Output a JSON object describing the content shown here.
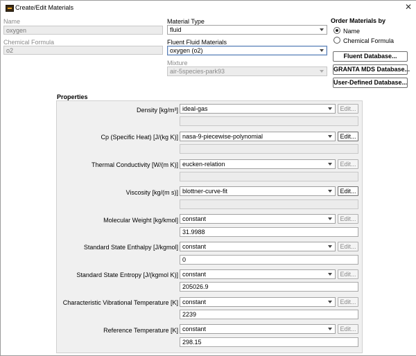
{
  "window": {
    "title": "Create/Edit Materials",
    "close_glyph": "✕"
  },
  "name": {
    "label": "Name",
    "value": "oxygen"
  },
  "formula": {
    "label": "Chemical Formula",
    "value": "o2"
  },
  "material_type": {
    "label": "Material Type",
    "value": "fluid"
  },
  "fluent_materials": {
    "label": "Fluent Fluid Materials",
    "value": "oxygen (o2)"
  },
  "mixture": {
    "label": "Mixture",
    "value": "air-5species-park93"
  },
  "order_by": {
    "title": "Order Materials by",
    "options": [
      {
        "label": "Name",
        "selected": true
      },
      {
        "label": "Chemical Formula",
        "selected": false
      }
    ]
  },
  "databases": {
    "fluent": "Fluent Database...",
    "granta": "GRANTA MDS Database...",
    "user": "User-Defined Database..."
  },
  "properties": {
    "title": "Properties",
    "edit_label": "Edit...",
    "rows": [
      {
        "label": "Density [kg/m³]",
        "method": "ideal-gas",
        "value": "",
        "edit_enabled": false
      },
      {
        "label": "Cp (Specific Heat) [J/(kg K)]",
        "method": "nasa-9-piecewise-polynomial",
        "value": "",
        "edit_enabled": true
      },
      {
        "label": "Thermal Conductivity [W/(m K)]",
        "method": "eucken-relation",
        "value": "",
        "edit_enabled": false
      },
      {
        "label": "Viscosity [kg/(m s)]",
        "method": "blottner-curve-fit",
        "value": "",
        "edit_enabled": true
      },
      {
        "label": "Molecular Weight [kg/kmol]",
        "method": "constant",
        "value": "31.9988",
        "edit_enabled": false
      },
      {
        "label": "Standard State Enthalpy [J/kgmol]",
        "method": "constant",
        "value": "0",
        "edit_enabled": false
      },
      {
        "label": "Standard State Entropy [J/(kgmol K)]",
        "method": "constant",
        "value": "205026.9",
        "edit_enabled": false
      },
      {
        "label": "Characteristic Vibrational Temperature [K]",
        "method": "constant",
        "value": "2239",
        "edit_enabled": false
      },
      {
        "label": "Reference Temperature [K]",
        "method": "constant",
        "value": "298.15",
        "edit_enabled": false
      }
    ]
  }
}
